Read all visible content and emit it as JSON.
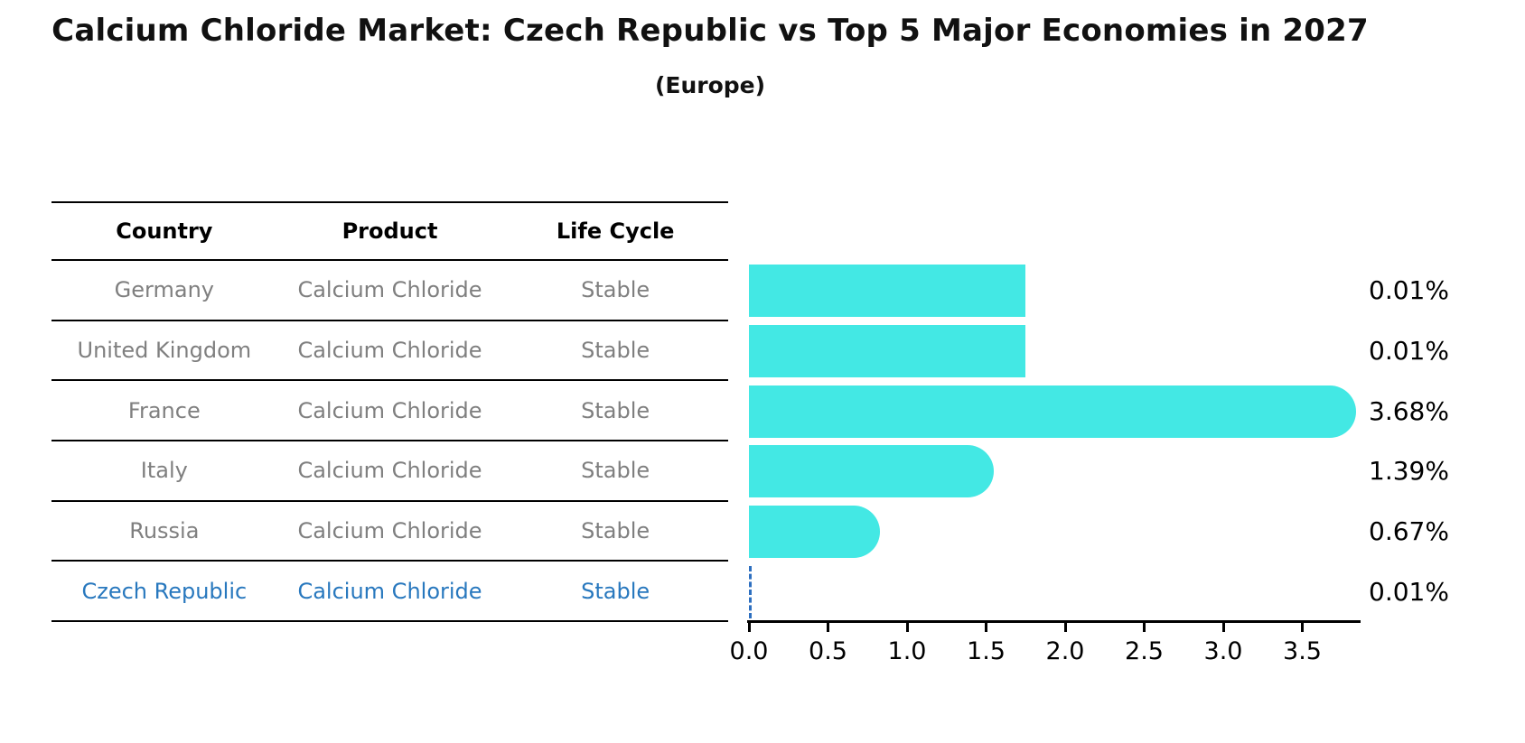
{
  "header": {
    "title": "Calcium Chloride Market: Czech Republic vs Top 5 Major Economies in 2027",
    "subtitle": "(Europe)"
  },
  "table": {
    "columns": [
      "Country",
      "Product",
      "Life Cycle"
    ],
    "rows": [
      {
        "country": "Germany",
        "product": "Calcium Chloride",
        "life_cycle": "Stable",
        "highlighted": false
      },
      {
        "country": "United Kingdom",
        "product": "Calcium Chloride",
        "life_cycle": "Stable",
        "highlighted": false
      },
      {
        "country": "France",
        "product": "Calcium Chloride",
        "life_cycle": "Stable",
        "highlighted": false
      },
      {
        "country": "Italy",
        "product": "Calcium Chloride",
        "life_cycle": "Stable",
        "highlighted": false
      },
      {
        "country": "Russia",
        "product": "Calcium Chloride",
        "life_cycle": "Stable",
        "highlighted": false
      },
      {
        "country": "Czech Republic",
        "product": "Calcium Chloride",
        "life_cycle": "Stable",
        "highlighted": true
      }
    ]
  },
  "chart_data": {
    "type": "bar",
    "orientation": "horizontal",
    "title": "Calcium Chloride Market: Czech Republic vs Top 5 Major Economies in 2027",
    "subtitle": "(Europe)",
    "categories": [
      "Germany",
      "United Kingdom",
      "France",
      "Italy",
      "Russia",
      "Czech Republic"
    ],
    "values": [
      0.01,
      0.01,
      3.68,
      1.39,
      0.67,
      0.01
    ],
    "value_labels": [
      "0.01%",
      "0.01%",
      "3.68%",
      "1.39%",
      "0.67%",
      "0.01%"
    ],
    "x_tick_labels": [
      "0.0",
      "0.5",
      "1.0",
      "1.5",
      "2.0",
      "2.5",
      "3.0",
      "3.5"
    ],
    "xlim": [
      0,
      3.86
    ],
    "xlabel": "",
    "ylabel": "",
    "grid": false,
    "legend": false,
    "bar_color": "#43e8e4",
    "highlight_index": 5,
    "highlight_style": "dashed-outline",
    "highlight_color": "#2d6fc0",
    "value_label_color": "#000000"
  },
  "colors": {
    "background": "#ffffff",
    "bar": "#43e8e4",
    "highlight_blue": "#2878be",
    "row_text_gray": "#7f7f7f",
    "axis_black": "#000000"
  }
}
